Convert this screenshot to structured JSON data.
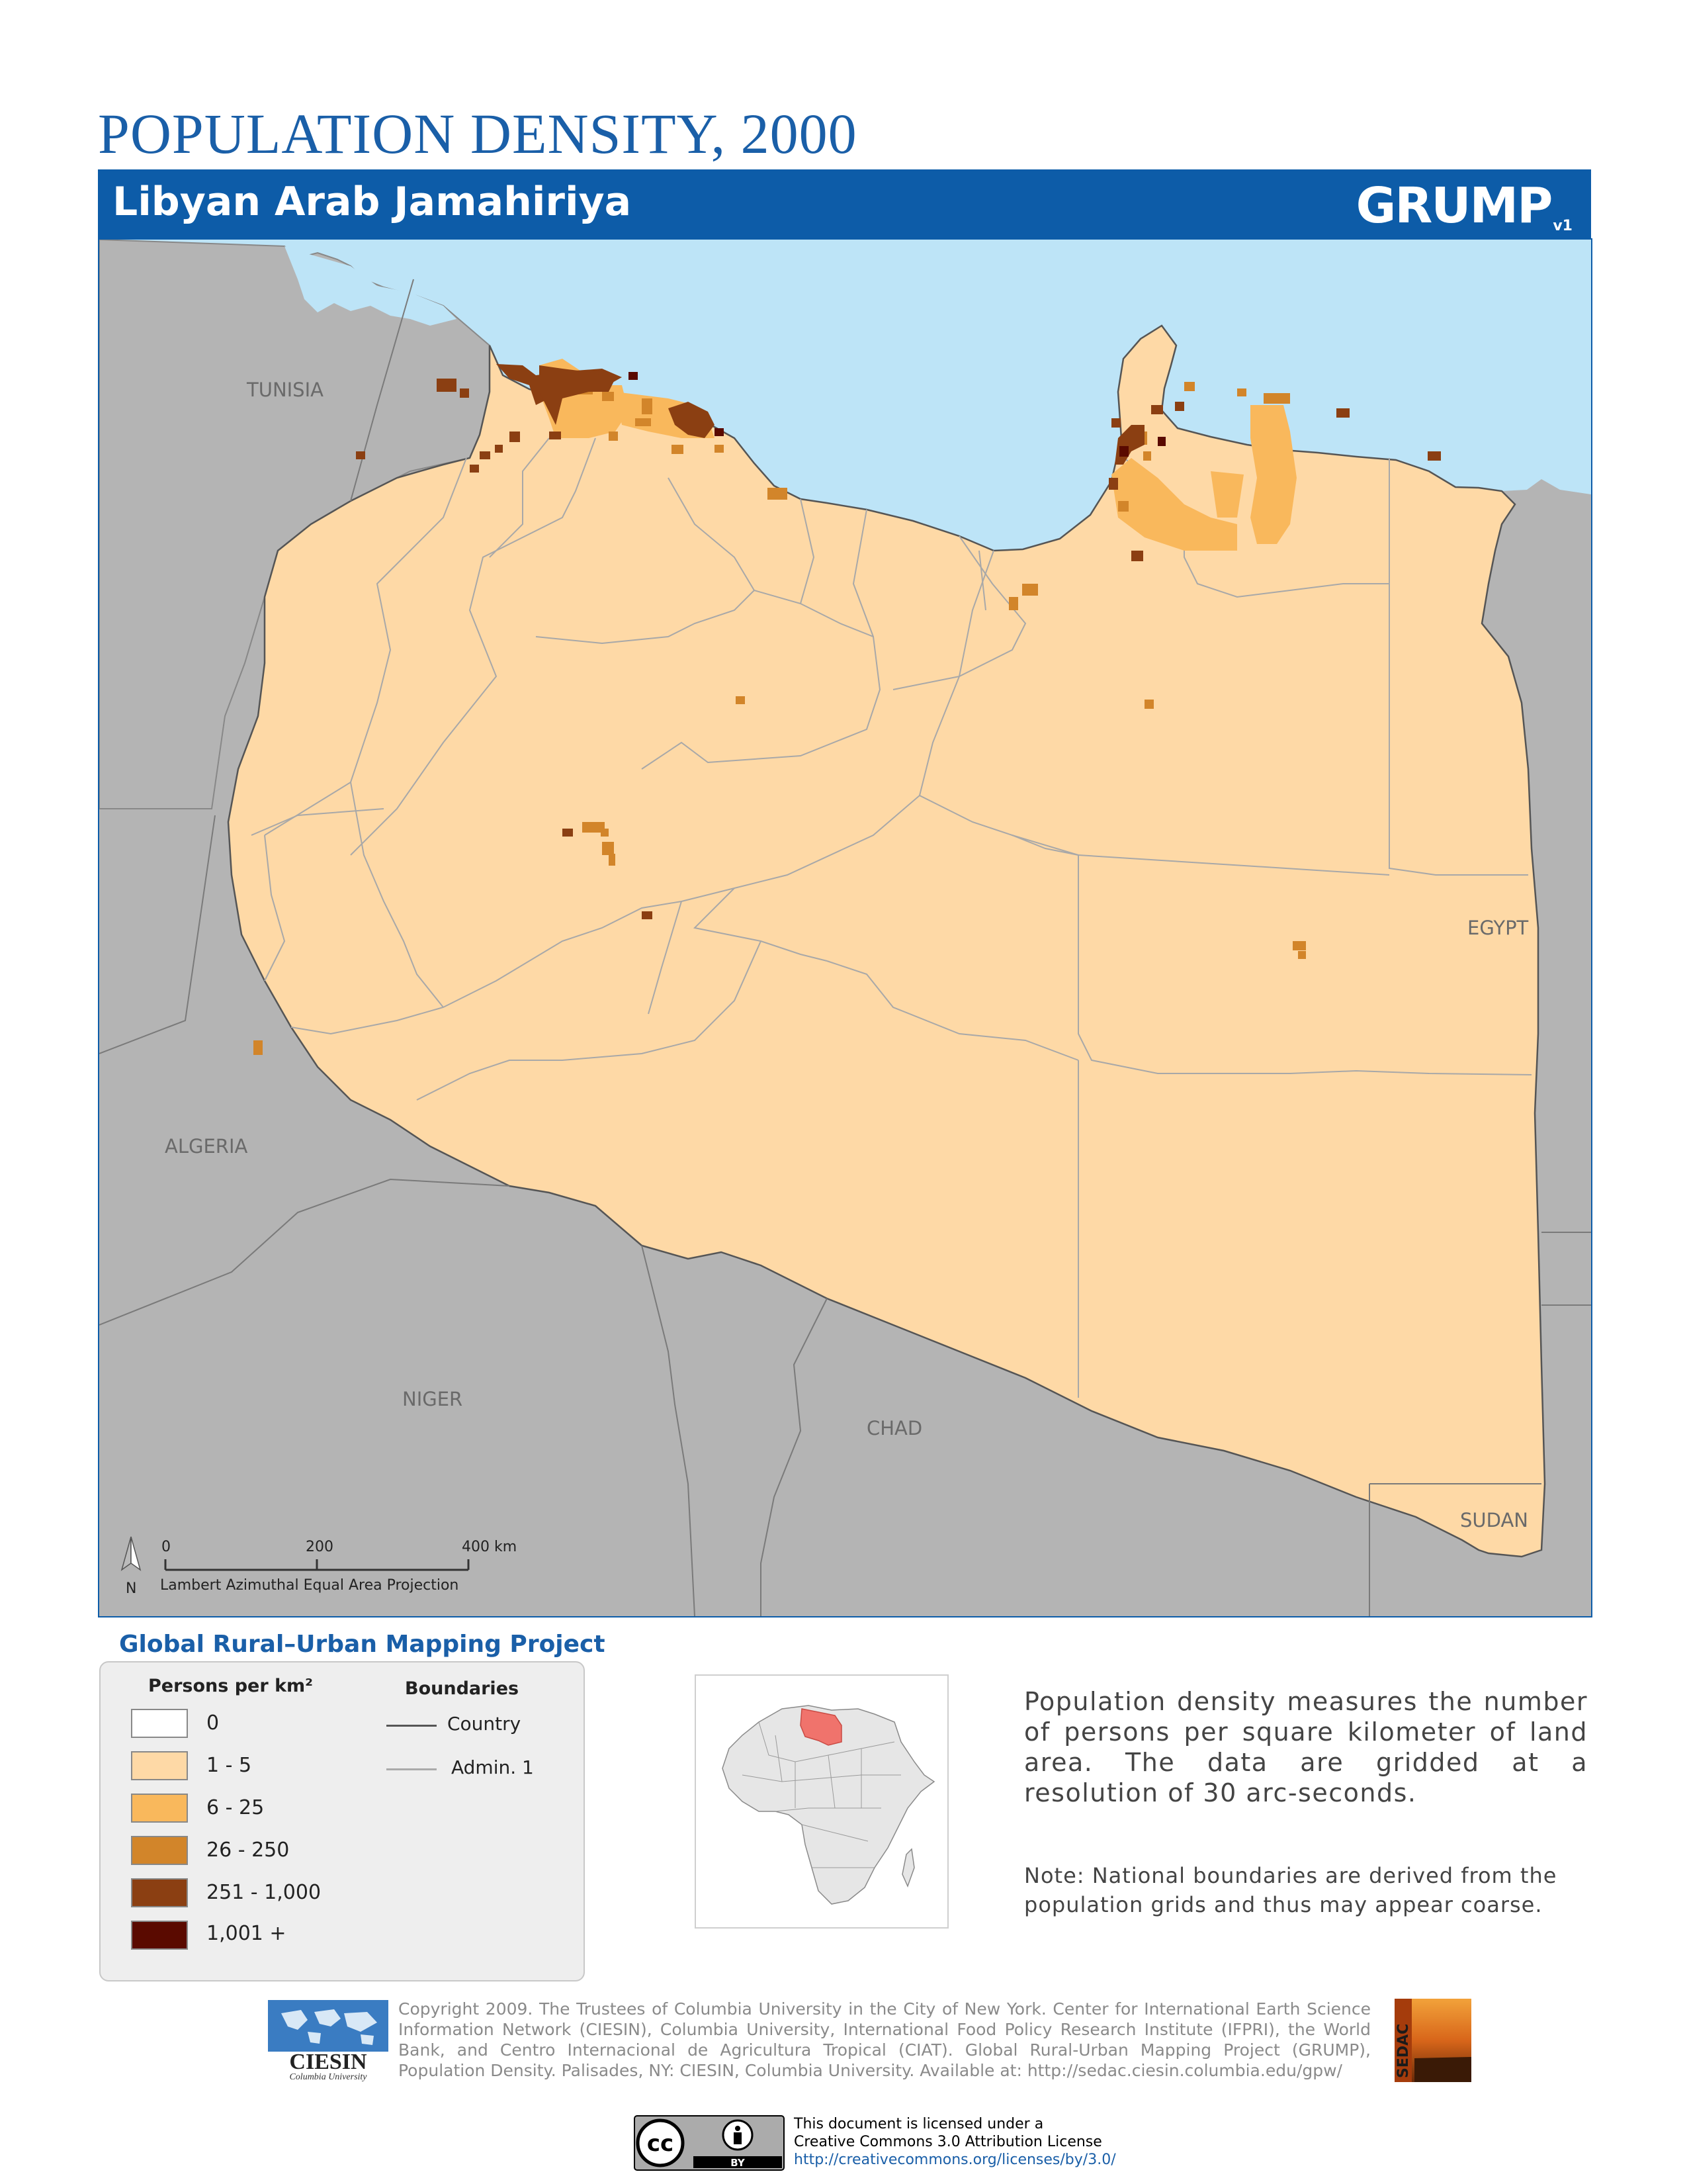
{
  "header": {
    "title": "POPULATION DENSITY, 2000",
    "country": "Libyan Arab Jamahiriya",
    "logo_text": "GRUMP",
    "logo_version": "v1"
  },
  "map": {
    "neighbor_labels": [
      "TUNISIA",
      "ALGERIA",
      "NIGER",
      "CHAD",
      "EGYPT",
      "SUDAN"
    ],
    "scale_ticks": [
      "0",
      "200",
      "400 km"
    ],
    "north_label": "N",
    "projection": "Lambert Azimuthal Equal Area Projection",
    "colors": {
      "sea": "#bde4f7",
      "neighbors": "#b4b4b4",
      "land_1_5": "#fed9a6",
      "d_6_25": "#f9b85c",
      "d_26_250": "#d2852a",
      "d_251_1000": "#8b3f12",
      "d_1001": "#5a0a00"
    }
  },
  "project_title": "Global Rural–Urban Mapping Project",
  "legend": {
    "density_heading": "Persons per km²",
    "boundaries_heading": "Boundaries",
    "classes": [
      {
        "label": "0",
        "color": "#ffffff"
      },
      {
        "label": "1 - 5",
        "color": "#fed9a6"
      },
      {
        "label": "6 - 25",
        "color": "#f9b85c"
      },
      {
        "label": "26 - 250",
        "color": "#d2852a"
      },
      {
        "label": "251 - 1,000",
        "color": "#8b3f12"
      },
      {
        "label": "1,001 +",
        "color": "#5a0a00"
      }
    ],
    "boundaries": [
      {
        "label": "Country",
        "color": "#555555"
      },
      {
        "label": "Admin. 1",
        "color": "#aaaaaa"
      }
    ]
  },
  "description": "Population density measures the number of persons per square kilometer of land area. The data are gridded at a resolution of 30 arc-seconds.",
  "note": "Note: National boundaries are derived from the population grids and thus may appear coarse.",
  "footer": {
    "ciesin_name": "CIESIN",
    "ciesin_sub": "Columbia University",
    "copyright": "Copyright 2009. The Trustees of Columbia University in the City of New York. Center for International Earth Science Information Network (CIESIN), Columbia University, International Food Policy Research Institute (IFPRI), the World Bank, and Centro Internacional de Agricultura Tropical (CIAT). Global Rural-Urban Mapping Project (GRUMP), Population Density. Palisades, NY: CIESIN, Columbia University. Available at: http://sedac.ciesin.columbia.edu/gpw/",
    "sedac_text": "SEDAC",
    "license_line1": "This document is licensed under a",
    "license_line2": "Creative Commons 3.0 Attribution License",
    "license_url": "http://creativecommons.org/licenses/by/3.0/",
    "cc_mark": "cc",
    "by_mark": "BY"
  }
}
